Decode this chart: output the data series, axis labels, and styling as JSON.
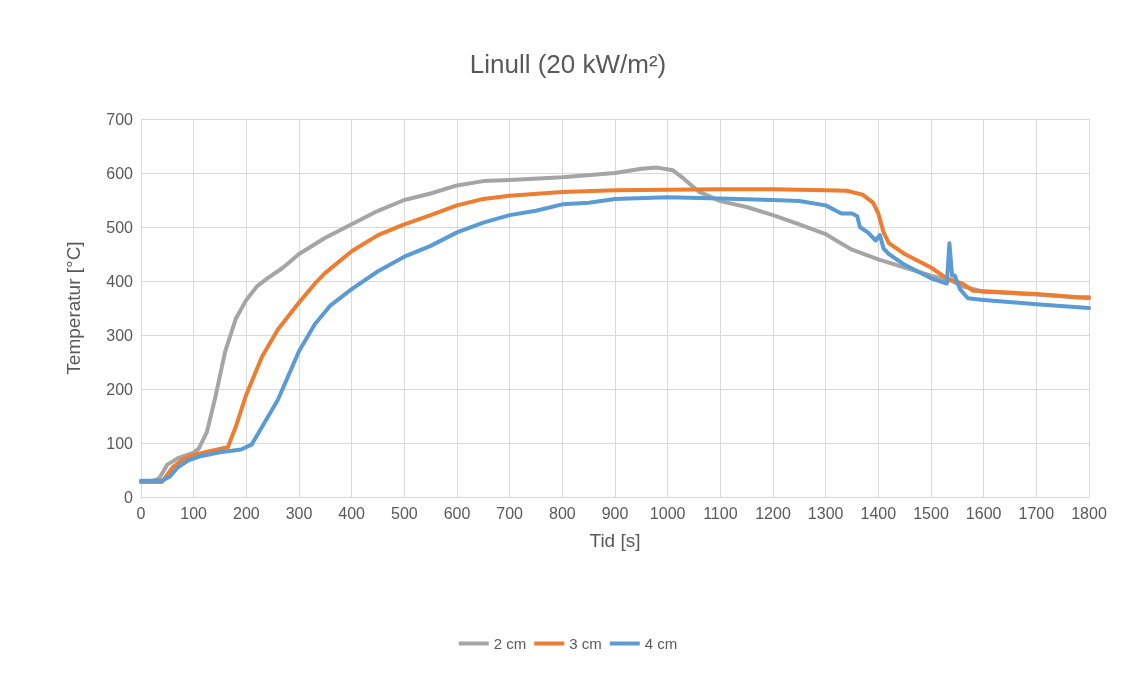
{
  "chart_data": {
    "type": "line",
    "title": "Linull (20 kW/m²)",
    "xlabel": "Tid [s]",
    "ylabel": "Temperatur [°C]",
    "xlim": [
      0,
      1800
    ],
    "xticks": [
      0,
      100,
      200,
      300,
      400,
      500,
      600,
      700,
      800,
      900,
      1000,
      1100,
      1200,
      1300,
      1400,
      1500,
      1600,
      1700,
      1800
    ],
    "ylim": [
      0,
      700
    ],
    "yticks": [
      0,
      100,
      200,
      300,
      400,
      500,
      600,
      700
    ],
    "grid": true,
    "legend": "bottom",
    "marker": "none",
    "line_style": "solid",
    "series": [
      {
        "name": "2 cm",
        "color": "#a5a5a5",
        "x": [
          0,
          20,
          35,
          50,
          70,
          100,
          110,
          125,
          140,
          160,
          180,
          200,
          220,
          240,
          270,
          300,
          350,
          400,
          450,
          500,
          550,
          600,
          650,
          700,
          800,
          900,
          950,
          980,
          1010,
          1030,
          1060,
          1100,
          1150,
          1200,
          1250,
          1300,
          1320,
          1350,
          1400,
          1450,
          1500,
          1540,
          1560,
          1600,
          1700,
          1800
        ],
        "values": [
          28,
          28,
          35,
          60,
          72,
          82,
          90,
          120,
          180,
          270,
          330,
          365,
          390,
          405,
          425,
          450,
          480,
          505,
          530,
          550,
          562,
          577,
          585,
          587,
          592,
          600,
          608,
          610,
          605,
          590,
          565,
          548,
          537,
          522,
          505,
          487,
          475,
          458,
          440,
          425,
          410,
          400,
          390,
          380,
          375,
          368
        ]
      },
      {
        "name": "3 cm",
        "color": "#ed7d31",
        "x": [
          0,
          40,
          60,
          80,
          100,
          130,
          165,
          180,
          200,
          230,
          260,
          300,
          330,
          350,
          400,
          450,
          500,
          550,
          600,
          650,
          700,
          800,
          900,
          1000,
          1100,
          1200,
          1300,
          1340,
          1370,
          1390,
          1400,
          1410,
          1420,
          1450,
          1500,
          1530,
          1560,
          1580,
          1600,
          1700,
          1780,
          1800
        ],
        "values": [
          28,
          28,
          55,
          70,
          78,
          85,
          92,
          130,
          190,
          260,
          310,
          360,
          395,
          415,
          455,
          485,
          505,
          522,
          540,
          552,
          558,
          565,
          568,
          569,
          570,
          570,
          568,
          567,
          560,
          545,
          525,
          490,
          470,
          450,
          425,
          405,
          395,
          382,
          381,
          376,
          370,
          370
        ]
      },
      {
        "name": "4 cm",
        "color": "#5b9bd5",
        "x": [
          0,
          40,
          55,
          70,
          90,
          110,
          150,
          190,
          210,
          230,
          260,
          300,
          330,
          360,
          400,
          450,
          500,
          550,
          600,
          650,
          700,
          750,
          800,
          850,
          900,
          1000,
          1100,
          1200,
          1250,
          1300,
          1330,
          1350,
          1360,
          1365,
          1380,
          1395,
          1403,
          1410,
          1420,
          1450,
          1500,
          1530,
          1535,
          1540,
          1545,
          1555,
          1570,
          1600,
          1700,
          1800
        ],
        "values": [
          30,
          30,
          38,
          55,
          68,
          75,
          83,
          88,
          97,
          130,
          180,
          270,
          320,
          355,
          385,
          418,
          445,
          465,
          490,
          508,
          522,
          530,
          542,
          545,
          552,
          555,
          553,
          550,
          548,
          540,
          525,
          525,
          520,
          500,
          490,
          475,
          485,
          460,
          450,
          430,
          405,
          395,
          470,
          410,
          410,
          385,
          368,
          365,
          357,
          350
        ]
      }
    ]
  }
}
